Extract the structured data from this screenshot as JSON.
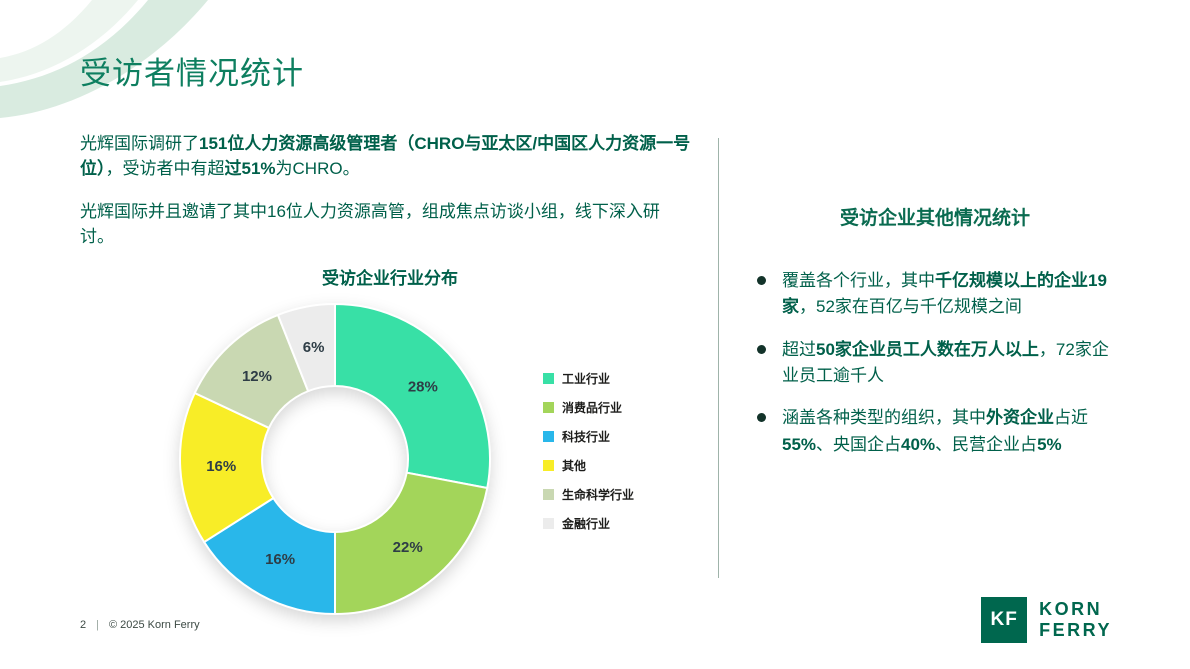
{
  "meta": {
    "page_number": "2",
    "separator": "|",
    "copyright": "© 2025 Korn Ferry"
  },
  "title": "受访者情况统计",
  "intro": {
    "p1": [
      {
        "text": "光辉国际调研了",
        "bold": false
      },
      {
        "text": "151位人力资源高级管理者（CHRO与亚太区/中国区人力资源一号位）",
        "bold": true
      },
      {
        "text": "，受访者中有超",
        "bold": false
      },
      {
        "text": "过51%",
        "bold": true
      },
      {
        "text": "为CHRO。",
        "bold": false
      }
    ],
    "p2": [
      {
        "text": "光辉国际并且邀请了其中16位人力资源高管，组成焦点访谈小组，线下深入研讨。",
        "bold": false
      }
    ]
  },
  "chart_data": {
    "type": "pie",
    "variant": "donut",
    "title": "受访企业行业分布",
    "categories": [
      "工业行业",
      "消费品行业",
      "科技行业",
      "其他",
      "生命科学行业",
      "金融行业"
    ],
    "values": [
      28,
      22,
      16,
      16,
      12,
      6
    ],
    "unit": "%",
    "labels": [
      "28%",
      "22%",
      "16%",
      "16%",
      "12%",
      "6%"
    ],
    "colors": [
      "#38E0A6",
      "#A3D55A",
      "#29B7EA",
      "#F8ED27",
      "#C9D8B2",
      "#ECECEC"
    ],
    "legend_position": "right",
    "start_angle_deg": 0,
    "direction": "clockwise"
  },
  "right_panel": {
    "heading": "受访企业其他情况统计",
    "bullets": [
      [
        {
          "text": "覆盖各个行业，其中",
          "bold": false
        },
        {
          "text": "千亿规模以上的企业19家",
          "bold": true
        },
        {
          "text": "，52家在百亿与千亿规模之间",
          "bold": false
        }
      ],
      [
        {
          "text": "超过",
          "bold": false
        },
        {
          "text": "50家企业员工人数在万人以上",
          "bold": true
        },
        {
          "text": "，72家企业员工逾千人",
          "bold": false
        }
      ],
      [
        {
          "text": "涵盖各种类型的组织，其中",
          "bold": false
        },
        {
          "text": "外资企业",
          "bold": true
        },
        {
          "text": "占近",
          "bold": false
        },
        {
          "text": "55%",
          "bold": true
        },
        {
          "text": "、央国企占",
          "bold": false
        },
        {
          "text": "40%",
          "bold": true
        },
        {
          "text": "、民营企业占",
          "bold": false
        },
        {
          "text": "5%",
          "bold": true
        }
      ]
    ]
  },
  "logo": {
    "monogram": "KF",
    "line1": "KORN",
    "line2": "FERRY"
  }
}
